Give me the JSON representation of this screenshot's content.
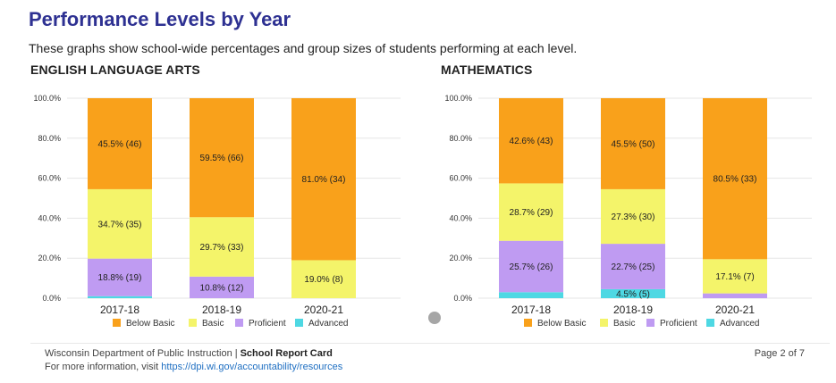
{
  "header": {
    "title": "Performance Levels by Year",
    "subtitle": "These graphs show school-wide percentages and group sizes of students performing at each level."
  },
  "legend": {
    "items": [
      {
        "name": "Below Basic",
        "color": "#f9a11b"
      },
      {
        "name": "Basic",
        "color": "#f4f46a"
      },
      {
        "name": "Proficient",
        "color": "#bf9bf2"
      },
      {
        "name": "Advanced",
        "color": "#4ed8e3"
      }
    ]
  },
  "chart_data": [
    {
      "type": "bar",
      "stacked": true,
      "title": "ENGLISH LANGUAGE ARTS",
      "categories": [
        "2017-18",
        "2018-19",
        "2020-21"
      ],
      "ylim": [
        0,
        100
      ],
      "yticks": [
        "0.0%",
        "20.0%",
        "40.0%",
        "60.0%",
        "80.0%",
        "100.0%"
      ],
      "grid": true,
      "legend_position": "bottom",
      "series": [
        {
          "name": "Advanced",
          "color": "#4ed8e3",
          "values": [
            1.0,
            0.0,
            0.0
          ],
          "labels": [
            "",
            "",
            ""
          ]
        },
        {
          "name": "Proficient",
          "color": "#bf9bf2",
          "values": [
            18.8,
            10.8,
            0.0
          ],
          "labels": [
            "18.8% (19)",
            "10.8% (12)",
            ""
          ]
        },
        {
          "name": "Basic",
          "color": "#f4f46a",
          "values": [
            34.7,
            29.7,
            19.0
          ],
          "labels": [
            "34.7% (35)",
            "29.7% (33)",
            "19.0% (8)"
          ]
        },
        {
          "name": "Below Basic",
          "color": "#f9a11b",
          "values": [
            45.5,
            59.5,
            81.0
          ],
          "labels": [
            "45.5% (46)",
            "59.5% (66)",
            "81.0% (34)"
          ]
        }
      ]
    },
    {
      "type": "bar",
      "stacked": true,
      "title": "MATHEMATICS",
      "categories": [
        "2017-18",
        "2018-19",
        "2020-21"
      ],
      "ylim": [
        0,
        100
      ],
      "yticks": [
        "0.0%",
        "20.0%",
        "40.0%",
        "60.0%",
        "80.0%",
        "100.0%"
      ],
      "grid": true,
      "legend_position": "bottom",
      "series": [
        {
          "name": "Advanced",
          "color": "#4ed8e3",
          "values": [
            3.0,
            4.5,
            0.0
          ],
          "labels": [
            "",
            "4.5% (5)",
            ""
          ]
        },
        {
          "name": "Proficient",
          "color": "#bf9bf2",
          "values": [
            25.7,
            22.7,
            2.4
          ],
          "labels": [
            "25.7% (26)",
            "22.7% (25)",
            ""
          ]
        },
        {
          "name": "Basic",
          "color": "#f4f46a",
          "values": [
            28.7,
            27.3,
            17.1
          ],
          "labels": [
            "28.7% (29)",
            "27.3% (30)",
            "17.1% (7)"
          ]
        },
        {
          "name": "Below Basic",
          "color": "#f9a11b",
          "values": [
            42.6,
            45.5,
            80.5
          ],
          "labels": [
            "42.6% (43)",
            "45.5% (50)",
            "80.5% (33)"
          ]
        }
      ]
    }
  ],
  "footer": {
    "org": "Wisconsin Department of Public Instruction",
    "separator": "|",
    "report": "School Report Card",
    "more_info": "For more information, visit",
    "link": "https://dpi.wi.gov/accountability/resources",
    "page": "Page 2 of 7"
  }
}
